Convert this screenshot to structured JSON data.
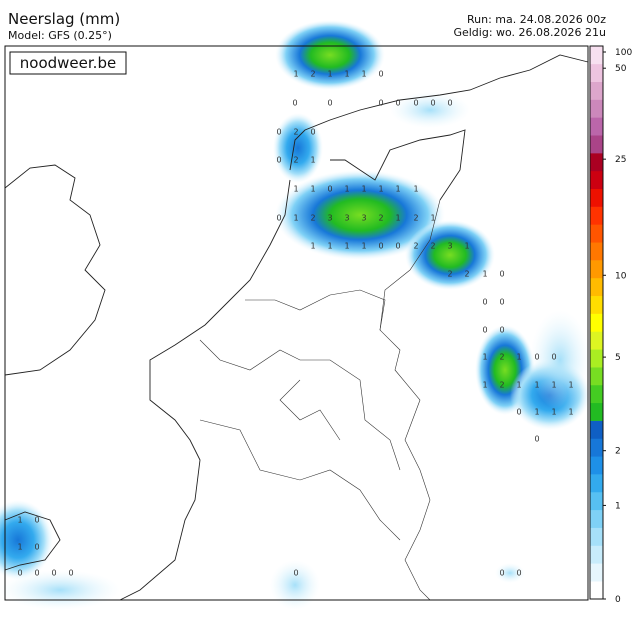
{
  "header": {
    "title": "Neerslag (mm)",
    "model": "Model: GFS (0.25°)",
    "run": "Run: ma. 24.08.2026 00z",
    "valid": "Geldig: wo. 26.08.2026 21u"
  },
  "logo": "noodweer.be",
  "grid_values": [
    1,
    2,
    1,
    1,
    1,
    0,
    0,
    0,
    0,
    0,
    0,
    0,
    0,
    0,
    2,
    0,
    0,
    2,
    1,
    1,
    1,
    0,
    1,
    1,
    1,
    1,
    1,
    0,
    1,
    2,
    3,
    3,
    3,
    2,
    1,
    2,
    1,
    1,
    1,
    1,
    1,
    0,
    0,
    2,
    2,
    3,
    1,
    2,
    2,
    1,
    0,
    0,
    0,
    0,
    0,
    1,
    2,
    1,
    0,
    0,
    1,
    2,
    1,
    1,
    1,
    1,
    0,
    1,
    1,
    1,
    0,
    1,
    0,
    1,
    0,
    0,
    0,
    0,
    0,
    0,
    0,
    0
  ],
  "colorbar": {
    "ticks": [
      0,
      1,
      2,
      5,
      10,
      25,
      50,
      100
    ],
    "colors": [
      "#ffffff",
      "#e6f6fd",
      "#c8ecfb",
      "#a6e0f9",
      "#7fd1f6",
      "#57c0f2",
      "#33aaee",
      "#1e90e8",
      "#1777d8",
      "#0f5fc4",
      "#22bb22",
      "#44cc22",
      "#77dd22",
      "#aaee22",
      "#ddf522",
      "#ffff00",
      "#ffdd00",
      "#ffbb00",
      "#ff9900",
      "#ff7700",
      "#ff5500",
      "#ff3300",
      "#ee1100",
      "#cc0011",
      "#aa0022",
      "#aa4488",
      "#bb66aa",
      "#cc88bb",
      "#dda6cc",
      "#eec4e0",
      "#f7e0f0"
    ]
  }
}
